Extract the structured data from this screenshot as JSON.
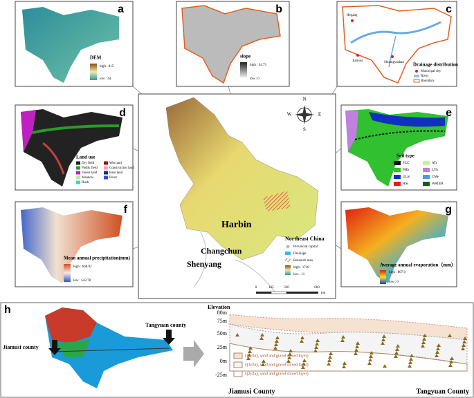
{
  "panels": {
    "a": {
      "letter": "a",
      "title": "DEM",
      "high": "high : 815",
      "low": "low : 44"
    },
    "b": {
      "letter": "b",
      "title": "slope",
      "high": "high : 44.75",
      "low": "low : 0"
    },
    "c": {
      "letter": "c",
      "cities": [
        "Hegang",
        "Jiamusi",
        "Shuangyashan"
      ],
      "title": "Drainage distribution",
      "legend": [
        "Municipal city",
        "River",
        "Boundary"
      ]
    },
    "d": {
      "letter": "d",
      "title": "Land use",
      "legend": [
        "Dry field",
        "Paddy field",
        "Forest land",
        "Meadow",
        "Bush",
        "Wet land",
        "Construction land",
        "Bare land",
        "River"
      ]
    },
    "e": {
      "letter": "e",
      "title": "Soil type",
      "legend": [
        "FLC",
        "ATc",
        "PHh",
        "LVh",
        "GLm",
        "CMe",
        "HSs",
        "WATER"
      ]
    },
    "f": {
      "letter": "f",
      "title": "Mean annual precipitation(mm)",
      "high": "high : 668.92",
      "low": "low : 542.78"
    },
    "g": {
      "letter": "g",
      "title": "Average annual evaporation（mm）",
      "high": "high : 807.0",
      "low": "low : 0"
    }
  },
  "map": {
    "cities": [
      "Harbin",
      "Changchun",
      "Shenyang"
    ],
    "compass": [
      "N",
      "S",
      "E",
      "W"
    ],
    "title": "Northeast China",
    "legend": [
      "Provincial capital",
      "Drainage",
      "Research area",
      "high : 1718",
      "low : 11"
    ],
    "scale": [
      "0",
      "165",
      "330",
      "660",
      "km"
    ]
  },
  "section": {
    "letter": "h",
    "left": "Jiamusi county",
    "right": "Tangyuan county",
    "axis_title": "Elevation",
    "ticks": [
      "80m",
      "75m",
      "50m",
      "25m",
      "0m",
      "-25m"
    ],
    "layers": [
      "Q4(clay, sand and gravel mixed layer)",
      "Q3(clay, sand and gravel mixed layer)",
      "Q2(clay, sand and gravel mixed layer)"
    ],
    "bottom_left": "Jiamusi County",
    "bottom_right": "Tangyuan County"
  }
}
